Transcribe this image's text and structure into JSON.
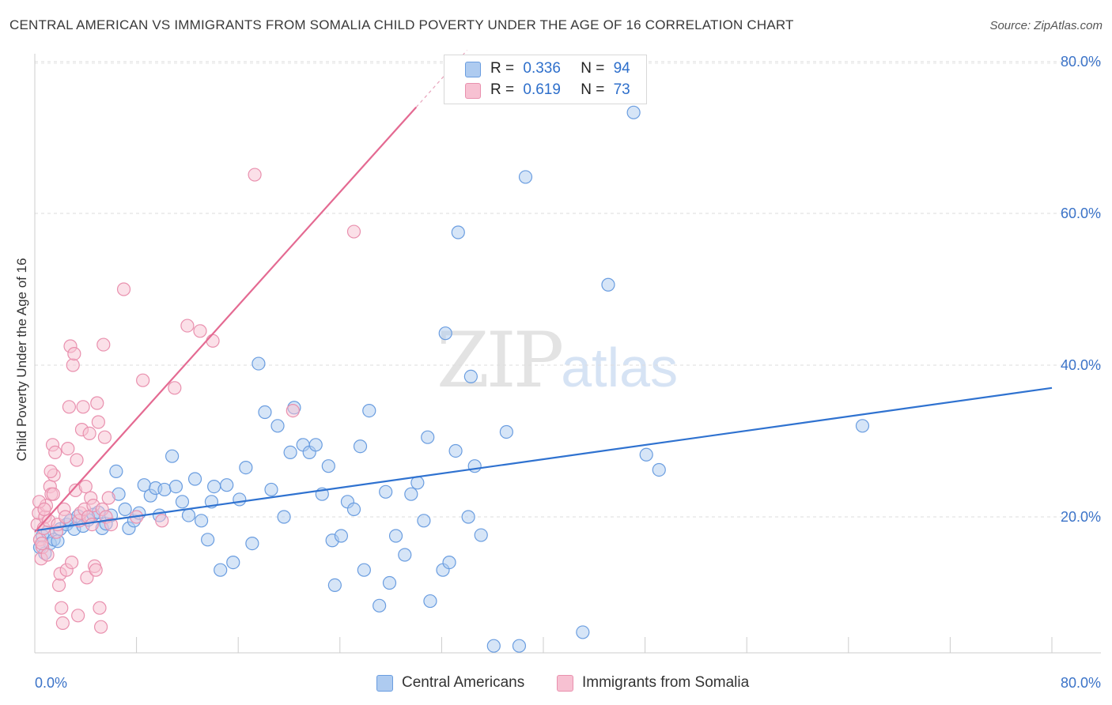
{
  "title": "CENTRAL AMERICAN VS IMMIGRANTS FROM SOMALIA CHILD POVERTY UNDER THE AGE OF 16 CORRELATION CHART",
  "source": "Source: ZipAtlas.com",
  "watermark": {
    "main": "ZIP",
    "sub": "atlas"
  },
  "legend": [
    {
      "r_label": "R =",
      "r_value": "0.336",
      "n_label": "N =",
      "n_value": "94",
      "color": "#aecbf0",
      "border": "#6a9de0"
    },
    {
      "r_label": "R =",
      "r_value": "0.619",
      "n_label": "N =",
      "n_value": "73",
      "color": "#f7c1d2",
      "border": "#e990ae"
    }
  ],
  "bottom_legend": [
    {
      "label": "Central Americans",
      "color": "#aecbf0",
      "border": "#6a9de0"
    },
    {
      "label": "Immigrants from Somalia",
      "color": "#f7c1d2",
      "border": "#e990ae"
    }
  ],
  "chart_data": {
    "type": "scatter",
    "xlabel": "",
    "ylabel": "Child Poverty Under the Age of 16",
    "xlim": [
      0,
      80
    ],
    "ylim": [
      0,
      82
    ],
    "x_tick_labels": [
      "0.0%",
      "80.0%"
    ],
    "y_tick_labels": [
      "20.0%",
      "40.0%",
      "60.0%",
      "80.0%"
    ],
    "y_ticks": [
      20,
      40,
      60,
      80
    ],
    "grid": true,
    "legend_position": "top-center",
    "series": [
      {
        "name": "Central Americans",
        "color": "#6a9de0",
        "fill": "#aecbf0",
        "trend": {
          "x": [
            0,
            80
          ],
          "y": [
            18.2,
            37.0
          ],
          "color": "#2f72d0"
        },
        "points": [
          [
            0.4,
            16.0
          ],
          [
            0.6,
            17.5
          ],
          [
            0.8,
            15.2
          ],
          [
            1.0,
            18.0
          ],
          [
            1.2,
            16.5
          ],
          [
            1.5,
            17.0
          ],
          [
            1.8,
            16.8
          ],
          [
            2.0,
            18.4
          ],
          [
            2.5,
            19.0
          ],
          [
            2.8,
            19.5
          ],
          [
            3.1,
            18.4
          ],
          [
            3.4,
            20.1
          ],
          [
            3.8,
            18.8
          ],
          [
            4.2,
            19.6
          ],
          [
            4.6,
            20.3
          ],
          [
            5.0,
            20.6
          ],
          [
            5.3,
            18.5
          ],
          [
            5.6,
            19.1
          ],
          [
            6.0,
            20.2
          ],
          [
            6.4,
            26.0
          ],
          [
            6.6,
            23.0
          ],
          [
            7.1,
            21.0
          ],
          [
            7.4,
            18.5
          ],
          [
            7.8,
            19.5
          ],
          [
            8.2,
            20.5
          ],
          [
            8.6,
            24.2
          ],
          [
            9.1,
            22.8
          ],
          [
            9.5,
            23.8
          ],
          [
            9.8,
            20.2
          ],
          [
            10.2,
            23.6
          ],
          [
            10.8,
            28.0
          ],
          [
            11.1,
            24.0
          ],
          [
            11.6,
            22.0
          ],
          [
            12.1,
            20.2
          ],
          [
            12.6,
            25.0
          ],
          [
            13.1,
            19.5
          ],
          [
            13.6,
            17.0
          ],
          [
            13.9,
            22.0
          ],
          [
            14.1,
            24.0
          ],
          [
            14.6,
            13.0
          ],
          [
            15.1,
            24.2
          ],
          [
            15.6,
            14.0
          ],
          [
            16.1,
            22.3
          ],
          [
            16.6,
            26.5
          ],
          [
            17.1,
            16.5
          ],
          [
            17.6,
            40.2
          ],
          [
            18.1,
            33.8
          ],
          [
            18.6,
            23.6
          ],
          [
            19.1,
            32.0
          ],
          [
            19.6,
            20.0
          ],
          [
            20.1,
            28.5
          ],
          [
            20.4,
            34.4
          ],
          [
            21.1,
            29.5
          ],
          [
            21.6,
            28.5
          ],
          [
            22.1,
            29.5
          ],
          [
            22.6,
            23.0
          ],
          [
            23.1,
            26.7
          ],
          [
            23.4,
            16.9
          ],
          [
            23.6,
            11.0
          ],
          [
            24.1,
            17.5
          ],
          [
            24.6,
            22.0
          ],
          [
            25.1,
            21.0
          ],
          [
            25.6,
            29.3
          ],
          [
            25.9,
            13.0
          ],
          [
            26.3,
            34.0
          ],
          [
            27.1,
            8.3
          ],
          [
            27.6,
            23.3
          ],
          [
            27.9,
            11.3
          ],
          [
            28.4,
            17.5
          ],
          [
            29.1,
            15.0
          ],
          [
            29.6,
            23.0
          ],
          [
            30.1,
            24.5
          ],
          [
            30.6,
            19.5
          ],
          [
            30.9,
            30.5
          ],
          [
            31.1,
            8.9
          ],
          [
            32.1,
            13.0
          ],
          [
            32.3,
            44.2
          ],
          [
            32.6,
            14.0
          ],
          [
            33.1,
            28.7
          ],
          [
            33.3,
            57.5
          ],
          [
            34.1,
            20.0
          ],
          [
            34.3,
            38.5
          ],
          [
            34.6,
            26.7
          ],
          [
            35.1,
            17.6
          ],
          [
            36.1,
            3.0
          ],
          [
            37.1,
            31.2
          ],
          [
            38.1,
            3.0
          ],
          [
            38.6,
            64.8
          ],
          [
            43.1,
            4.8
          ],
          [
            45.1,
            50.6
          ],
          [
            47.1,
            73.3
          ],
          [
            48.1,
            28.2
          ],
          [
            49.1,
            26.2
          ],
          [
            65.1,
            32.0
          ]
        ]
      },
      {
        "name": "Immigrants from Somalia",
        "color": "#e990ae",
        "fill": "#f7c1d2",
        "trend": {
          "x": [
            0,
            30
          ],
          "y": [
            18.0,
            74.0
          ],
          "color": "#e46a92"
        },
        "points": [
          [
            0.2,
            19.0
          ],
          [
            0.3,
            20.5
          ],
          [
            0.4,
            17.0
          ],
          [
            0.5,
            14.5
          ],
          [
            0.6,
            16.0
          ],
          [
            0.7,
            18.5
          ],
          [
            0.8,
            20.0
          ],
          [
            0.9,
            21.5
          ],
          [
            1.0,
            15.0
          ],
          [
            1.1,
            19.5
          ],
          [
            1.2,
            24.0
          ],
          [
            1.3,
            23.0
          ],
          [
            1.4,
            29.5
          ],
          [
            1.5,
            25.5
          ],
          [
            1.6,
            28.5
          ],
          [
            1.7,
            18.0
          ],
          [
            1.8,
            19.0
          ],
          [
            1.9,
            11.0
          ],
          [
            2.0,
            12.5
          ],
          [
            2.1,
            8.0
          ],
          [
            2.2,
            6.0
          ],
          [
            2.3,
            21.0
          ],
          [
            2.4,
            20.0
          ],
          [
            2.5,
            13.0
          ],
          [
            2.6,
            29.0
          ],
          [
            2.7,
            34.5
          ],
          [
            2.8,
            42.5
          ],
          [
            2.9,
            14.0
          ],
          [
            3.0,
            40.0
          ],
          [
            3.1,
            41.5
          ],
          [
            3.2,
            23.5
          ],
          [
            3.3,
            27.5
          ],
          [
            3.4,
            7.0
          ],
          [
            3.5,
            19.5
          ],
          [
            3.6,
            20.5
          ],
          [
            3.7,
            31.5
          ],
          [
            3.8,
            34.5
          ],
          [
            3.9,
            21.0
          ],
          [
            4.0,
            24.0
          ],
          [
            4.1,
            12.0
          ],
          [
            4.2,
            20.0
          ],
          [
            4.3,
            31.0
          ],
          [
            4.4,
            22.5
          ],
          [
            4.5,
            19.0
          ],
          [
            4.6,
            21.5
          ],
          [
            4.7,
            13.5
          ],
          [
            4.8,
            13.0
          ],
          [
            4.9,
            35.0
          ],
          [
            5.0,
            32.5
          ],
          [
            5.1,
            8.0
          ],
          [
            5.2,
            5.5
          ],
          [
            5.3,
            21.0
          ],
          [
            5.4,
            42.7
          ],
          [
            5.5,
            30.5
          ],
          [
            5.6,
            20.0
          ],
          [
            5.8,
            22.5
          ],
          [
            6.0,
            19.0
          ],
          [
            7.0,
            50.0
          ],
          [
            8.0,
            20.0
          ],
          [
            8.5,
            38.0
          ],
          [
            10.0,
            19.5
          ],
          [
            11.0,
            37.0
          ],
          [
            12.0,
            45.2
          ],
          [
            13.0,
            44.5
          ],
          [
            14.0,
            43.2
          ],
          [
            17.3,
            65.1
          ],
          [
            20.3,
            34.0
          ],
          [
            25.1,
            57.6
          ],
          [
            0.35,
            22.0
          ],
          [
            0.55,
            16.5
          ],
          [
            0.75,
            21.0
          ],
          [
            1.25,
            26.0
          ],
          [
            1.45,
            23.0
          ]
        ]
      }
    ]
  }
}
